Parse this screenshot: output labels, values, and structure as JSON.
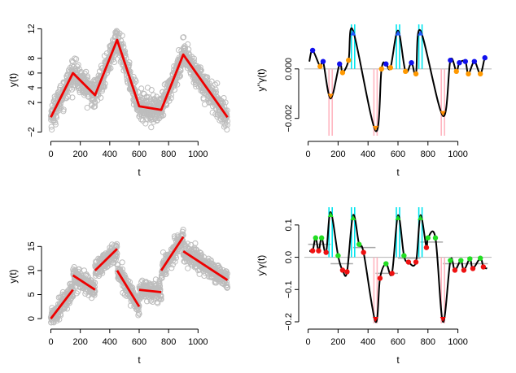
{
  "figure": {
    "description_free": true
  },
  "chart_data": [
    {
      "id": "top-left",
      "type": "scatter",
      "title": "",
      "xlabel": "t",
      "ylabel": "y(t)",
      "xlim": [
        -25,
        1225
      ],
      "ylim": [
        -2.5,
        12.6
      ],
      "xticks": [
        0,
        200,
        400,
        600,
        800,
        1000
      ],
      "xtick_labels": [
        "0",
        "200",
        "400",
        "600",
        "800",
        "1000"
      ],
      "yticks": [
        -2,
        2,
        4,
        6,
        8,
        12
      ],
      "ytick_labels": [
        "−2",
        "2",
        "4",
        "6",
        "8",
        "12"
      ],
      "fit_segments": [
        {
          "name": "piecewise-linear fit",
          "x": [
            0,
            150,
            300,
            450,
            600,
            750,
            900,
            1200
          ],
          "y": [
            0,
            6,
            3,
            10.5,
            1.5,
            1,
            8.5,
            0
          ]
        }
      ],
      "scatter_noise_sd": 0.9
    },
    {
      "id": "top-right",
      "type": "line",
      "title": "",
      "xlabel": "t",
      "ylabel": "y''γ(t)",
      "xlim": [
        -25,
        1225
      ],
      "ylim": [
        -0.0027,
        0.0018
      ],
      "xticks": [
        0,
        200,
        400,
        600,
        800,
        1000
      ],
      "xtick_labels": [
        "0",
        "200",
        "400",
        "600",
        "800",
        "1000"
      ],
      "yticks": [
        -0.002,
        0.0
      ],
      "ytick_labels": [
        "−0.002",
        "0.000"
      ],
      "baseline": 0,
      "change_points": [
        150,
        300,
        450,
        600,
        750,
        900
      ],
      "spikes": [
        {
          "t": 150,
          "value": -0.0012,
          "direction": "down"
        },
        {
          "t": 300,
          "value": 0.00155,
          "direction": "up"
        },
        {
          "t": 450,
          "value": -0.0025,
          "direction": "down"
        },
        {
          "t": 600,
          "value": 0.00155,
          "direction": "up"
        },
        {
          "t": 750,
          "value": 0.00155,
          "direction": "up"
        },
        {
          "t": 900,
          "value": -0.0019,
          "direction": "down"
        }
      ],
      "blue_points": [
        {
          "t": 30,
          "v": 0.00075
        },
        {
          "t": 100,
          "v": 0.0003
        },
        {
          "t": 210,
          "v": 0.0002
        },
        {
          "t": 520,
          "v": 0.0002
        },
        {
          "t": 690,
          "v": 0.00025
        },
        {
          "t": 950,
          "v": 0.00035
        },
        {
          "t": 1010,
          "v": 0.00025
        },
        {
          "t": 1050,
          "v": 0.0003
        },
        {
          "t": 1110,
          "v": 0.0003
        },
        {
          "t": 1180,
          "v": 0.00045
        }
      ],
      "orange_points": [
        {
          "t": 80,
          "v": 0.0001
        },
        {
          "t": 230,
          "v": -0.00015
        },
        {
          "t": 270,
          "v": 0.00035
        },
        {
          "t": 490,
          "v": 0.0
        },
        {
          "t": 550,
          "v": 5e-05
        },
        {
          "t": 650,
          "v": -0.0001
        },
        {
          "t": 720,
          "v": -0.0002
        },
        {
          "t": 990,
          "v": -0.0001
        },
        {
          "t": 1070,
          "v": -0.0002
        },
        {
          "t": 1150,
          "v": -0.0002
        }
      ]
    },
    {
      "id": "bottom-left",
      "type": "scatter",
      "title": "",
      "xlabel": "t",
      "ylabel": "y(t)",
      "xlim": [
        -25,
        1225
      ],
      "ylim": [
        -1,
        18.6
      ],
      "xticks": [
        0,
        200,
        400,
        600,
        800,
        1000
      ],
      "xtick_labels": [
        "0",
        "200",
        "400",
        "600",
        "800",
        "1000"
      ],
      "yticks": [
        0,
        5,
        10,
        15
      ],
      "ytick_labels": [
        "0",
        "5",
        "10",
        "15"
      ],
      "fit_segments": [
        {
          "name": "segment-1",
          "x": [
            0,
            150
          ],
          "y": [
            0,
            6
          ]
        },
        {
          "name": "segment-2",
          "x": [
            150,
            300
          ],
          "y": [
            9,
            6
          ]
        },
        {
          "name": "segment-3",
          "x": [
            300,
            450
          ],
          "y": [
            10,
            14.5
          ]
        },
        {
          "name": "segment-4",
          "x": [
            450,
            600
          ],
          "y": [
            10,
            2.5
          ]
        },
        {
          "name": "segment-5",
          "x": [
            600,
            750
          ],
          "y": [
            6,
            5.5
          ]
        },
        {
          "name": "segment-6",
          "x": [
            750,
            900
          ],
          "y": [
            10,
            17
          ]
        },
        {
          "name": "segment-7",
          "x": [
            900,
            1200
          ],
          "y": [
            14,
            8
          ]
        }
      ],
      "scatter_noise_sd": 1.0
    },
    {
      "id": "bottom-right",
      "type": "line",
      "title": "",
      "xlabel": "t",
      "ylabel": "y'γ(t)",
      "xlim": [
        -25,
        1225
      ],
      "ylim": [
        -0.205,
        0.155
      ],
      "xticks": [
        0,
        200,
        400,
        600,
        800,
        1000
      ],
      "xtick_labels": [
        "0",
        "200",
        "400",
        "600",
        "800",
        "1000"
      ],
      "yticks": [
        -0.2,
        -0.1,
        0.0,
        0.1
      ],
      "ytick_labels": [
        "−0.2",
        "−0.1",
        "0.0",
        "0.1"
      ],
      "baseline": 0,
      "change_points": [
        150,
        300,
        450,
        600,
        750,
        900
      ],
      "spikes": [
        {
          "t": 150,
          "value": 0.14,
          "direction": "up"
        },
        {
          "t": 300,
          "value": 0.13,
          "direction": "up"
        },
        {
          "t": 450,
          "value": -0.2,
          "direction": "down"
        },
        {
          "t": 600,
          "value": 0.13,
          "direction": "up"
        },
        {
          "t": 750,
          "value": 0.13,
          "direction": "up"
        },
        {
          "t": 900,
          "value": -0.2,
          "direction": "down"
        }
      ],
      "level_segments": [
        {
          "x": [
            0,
            150
          ],
          "y": 0.04
        },
        {
          "x": [
            150,
            300
          ],
          "y": -0.02
        },
        {
          "x": [
            300,
            450
          ],
          "y": 0.03
        },
        {
          "x": [
            450,
            600
          ],
          "y": -0.05
        },
        {
          "x": [
            600,
            750
          ],
          "y": -0.003
        },
        {
          "x": [
            750,
            900
          ],
          "y": 0.047
        },
        {
          "x": [
            900,
            1200
          ],
          "y": -0.02
        }
      ],
      "green_points": [
        {
          "t": 50,
          "v": 0.06
        },
        {
          "t": 90,
          "v": 0.06
        },
        {
          "t": 200,
          "v": 0.005
        },
        {
          "t": 340,
          "v": 0.04
        },
        {
          "t": 520,
          "v": -0.02
        },
        {
          "t": 640,
          "v": 0.005
        },
        {
          "t": 800,
          "v": 0.06
        },
        {
          "t": 850,
          "v": 0.06
        },
        {
          "t": 950,
          "v": -0.01
        },
        {
          "t": 1020,
          "v": -0.01
        },
        {
          "t": 1080,
          "v": -0.005
        },
        {
          "t": 1150,
          "v": -0.003
        }
      ],
      "red_points": [
        {
          "t": 30,
          "v": 0.02
        },
        {
          "t": 70,
          "v": 0.02
        },
        {
          "t": 120,
          "v": 0.015
        },
        {
          "t": 230,
          "v": -0.04
        },
        {
          "t": 260,
          "v": -0.045
        },
        {
          "t": 370,
          "v": 0.015
        },
        {
          "t": 480,
          "v": -0.065
        },
        {
          "t": 560,
          "v": -0.05
        },
        {
          "t": 670,
          "v": -0.015
        },
        {
          "t": 720,
          "v": -0.015
        },
        {
          "t": 790,
          "v": 0.03
        },
        {
          "t": 980,
          "v": -0.04
        },
        {
          "t": 1040,
          "v": -0.04
        },
        {
          "t": 1100,
          "v": -0.035
        },
        {
          "t": 1170,
          "v": -0.03
        }
      ]
    }
  ]
}
